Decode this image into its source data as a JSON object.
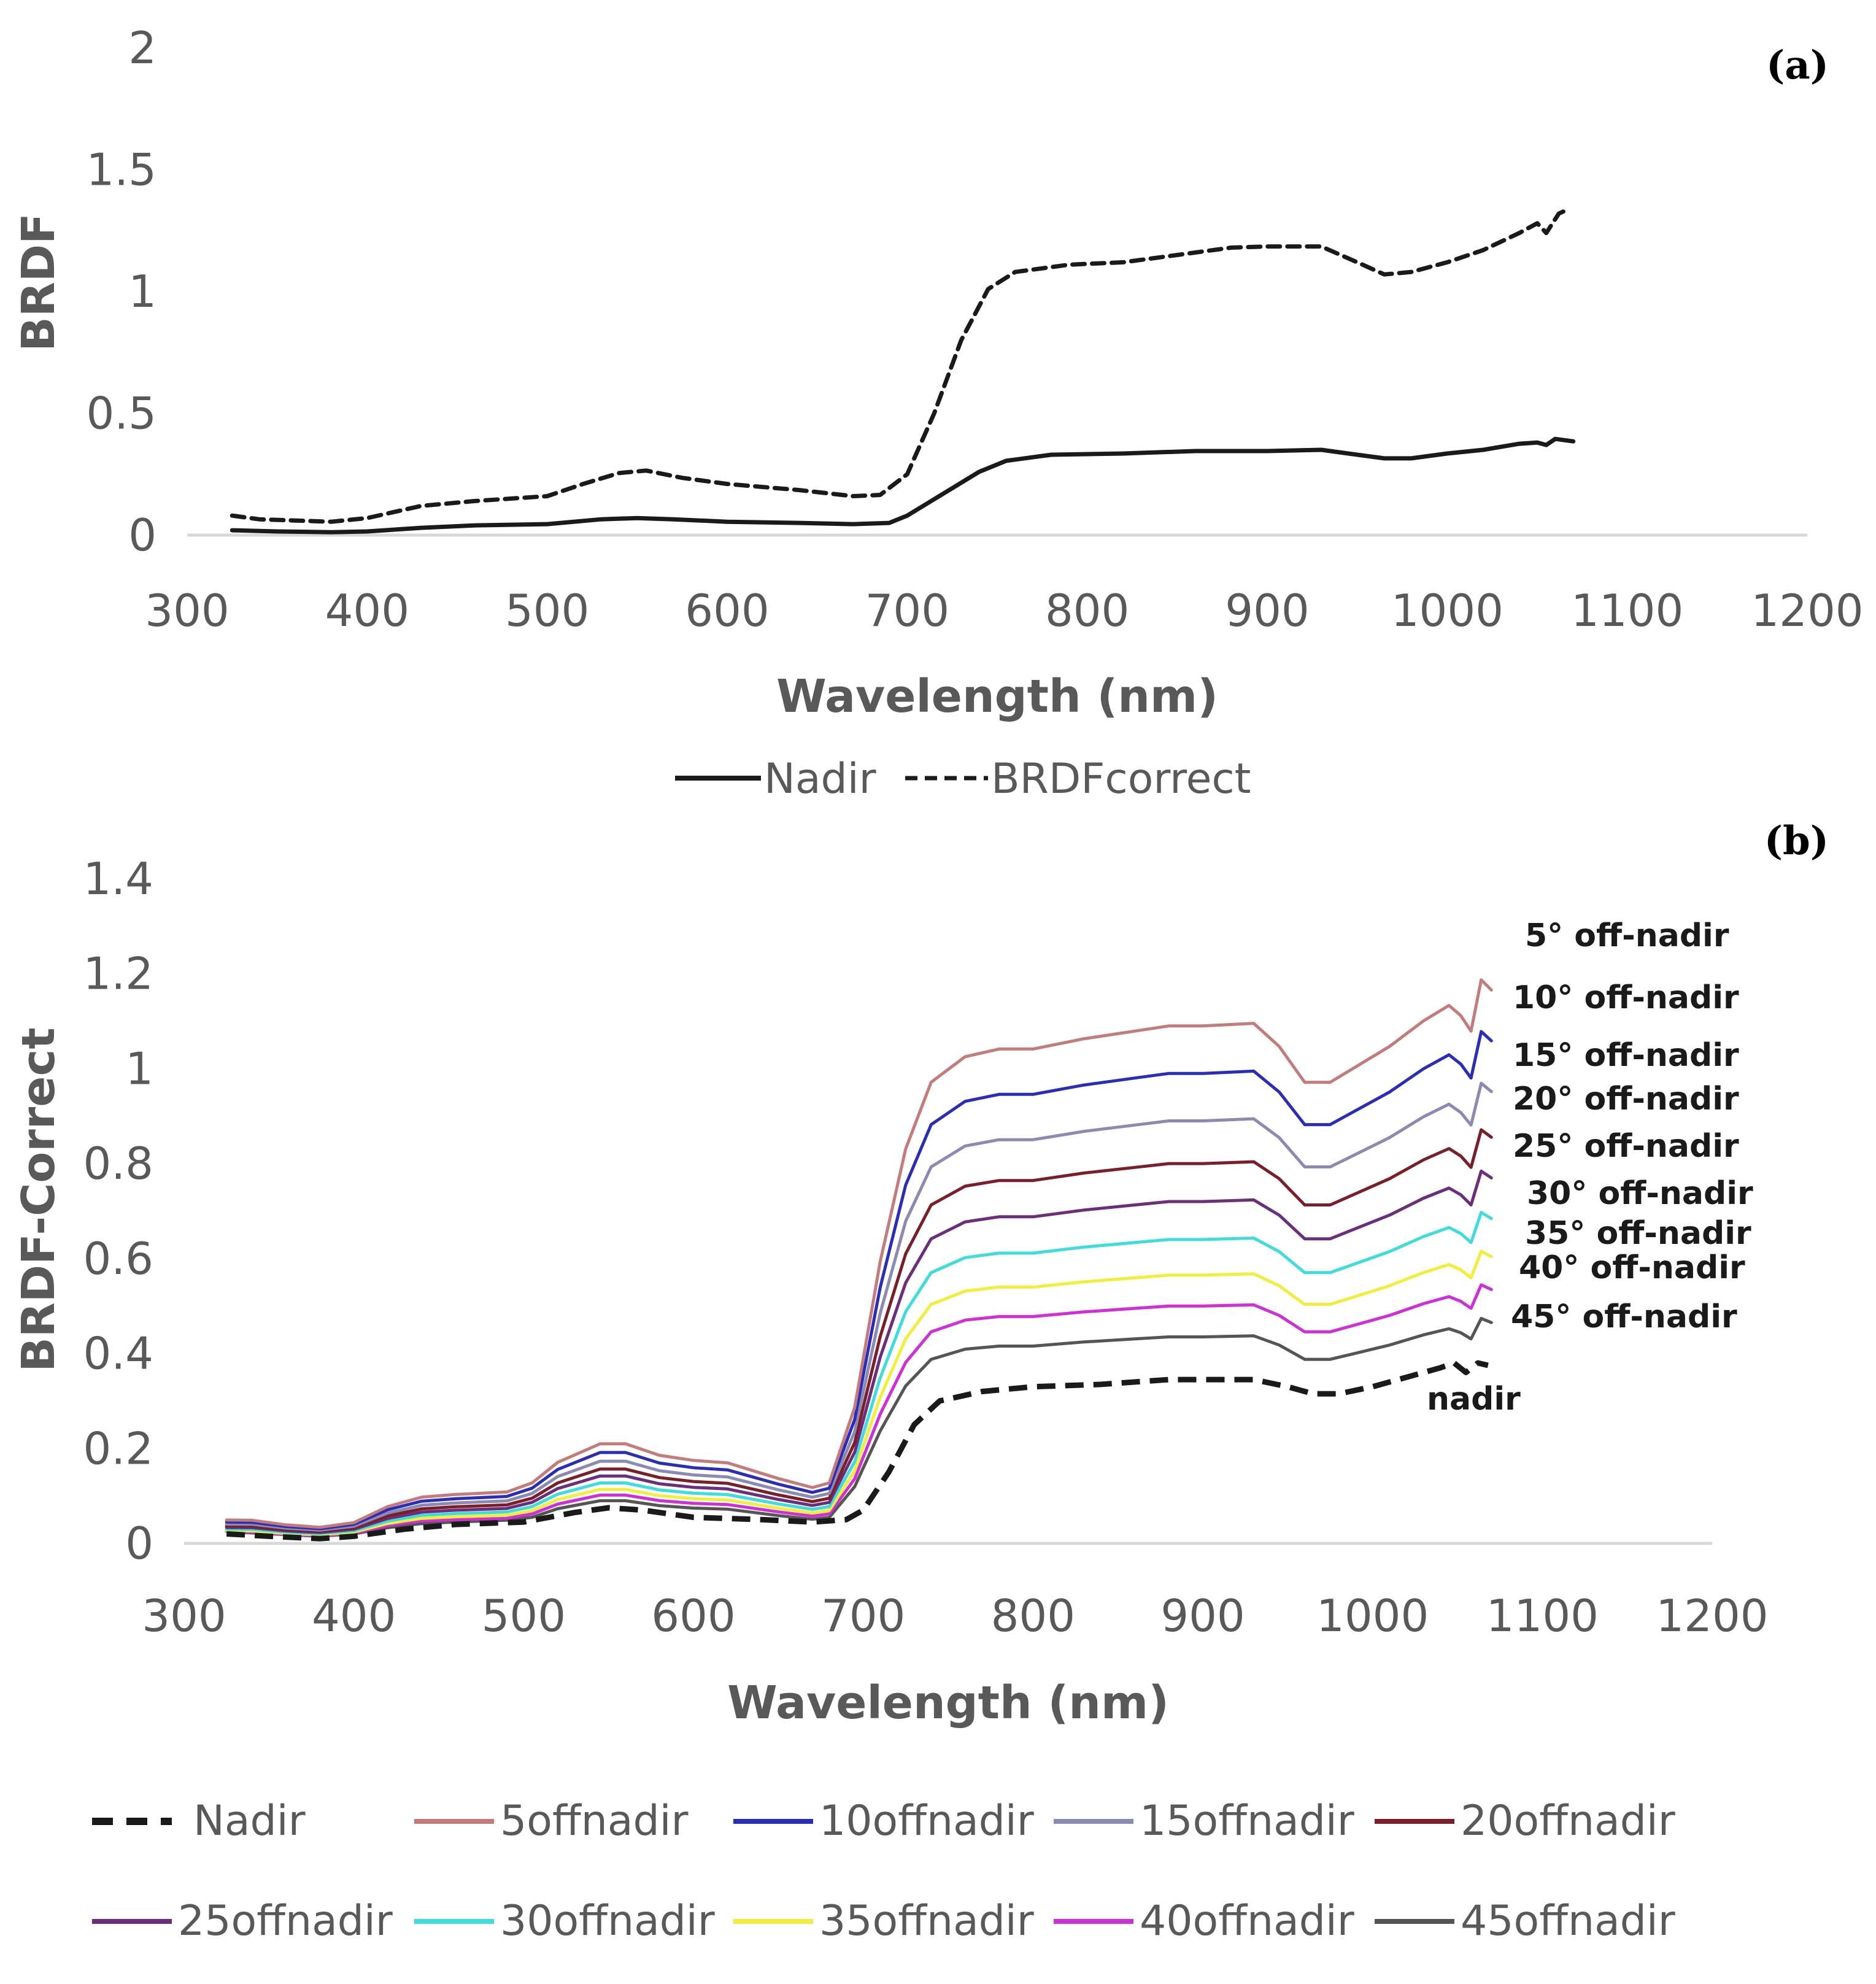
{
  "chart_data": [
    {
      "panel": "(a)",
      "type": "line",
      "xlabel": "Wavelength (nm)",
      "ylabel": "BRDF",
      "xlim": [
        300,
        1200
      ],
      "ylim": [
        0,
        2
      ],
      "xticks": [
        "300",
        "400",
        "500",
        "600",
        "700",
        "800",
        "900",
        "1000",
        "1100",
        "1200"
      ],
      "yticks": [
        "0",
        "0.5",
        "1",
        "1.5",
        "2"
      ],
      "grid": false,
      "legend_position": "bottom",
      "series": [
        {
          "name": "Nadir",
          "color": "#1a1a1a",
          "style": "solid",
          "points": [
            [
              325,
              0.02
            ],
            [
              350,
              0.015
            ],
            [
              380,
              0.012
            ],
            [
              400,
              0.015
            ],
            [
              430,
              0.03
            ],
            [
              460,
              0.04
            ],
            [
              500,
              0.045
            ],
            [
              530,
              0.065
            ],
            [
              550,
              0.07
            ],
            [
              570,
              0.065
            ],
            [
              600,
              0.055
            ],
            [
              640,
              0.05
            ],
            [
              670,
              0.045
            ],
            [
              690,
              0.05
            ],
            [
              700,
              0.08
            ],
            [
              720,
              0.17
            ],
            [
              740,
              0.26
            ],
            [
              755,
              0.305
            ],
            [
              780,
              0.33
            ],
            [
              820,
              0.335
            ],
            [
              860,
              0.345
            ],
            [
              900,
              0.345
            ],
            [
              930,
              0.35
            ],
            [
              950,
              0.33
            ],
            [
              965,
              0.315
            ],
            [
              980,
              0.315
            ],
            [
              1000,
              0.335
            ],
            [
              1020,
              0.35
            ],
            [
              1040,
              0.375
            ],
            [
              1050,
              0.38
            ],
            [
              1055,
              0.37
            ],
            [
              1060,
              0.395
            ],
            [
              1070,
              0.385
            ]
          ]
        },
        {
          "name": "BRDFcorrect",
          "color": "#1a1a1a",
          "style": "dashed",
          "points": [
            [
              325,
              0.08
            ],
            [
              340,
              0.065
            ],
            [
              380,
              0.055
            ],
            [
              400,
              0.07
            ],
            [
              430,
              0.12
            ],
            [
              460,
              0.14
            ],
            [
              500,
              0.16
            ],
            [
              520,
              0.21
            ],
            [
              540,
              0.255
            ],
            [
              555,
              0.265
            ],
            [
              575,
              0.235
            ],
            [
              600,
              0.21
            ],
            [
              640,
              0.185
            ],
            [
              670,
              0.16
            ],
            [
              685,
              0.165
            ],
            [
              700,
              0.25
            ],
            [
              715,
              0.5
            ],
            [
              730,
              0.8
            ],
            [
              745,
              1.01
            ],
            [
              760,
              1.08
            ],
            [
              790,
              1.11
            ],
            [
              820,
              1.12
            ],
            [
              850,
              1.15
            ],
            [
              880,
              1.18
            ],
            [
              900,
              1.185
            ],
            [
              930,
              1.185
            ],
            [
              950,
              1.12
            ],
            [
              965,
              1.07
            ],
            [
              980,
              1.08
            ],
            [
              1000,
              1.12
            ],
            [
              1020,
              1.17
            ],
            [
              1040,
              1.24
            ],
            [
              1050,
              1.28
            ],
            [
              1055,
              1.24
            ],
            [
              1062,
              1.32
            ],
            [
              1068,
              1.34
            ]
          ]
        }
      ]
    },
    {
      "panel": "(b)",
      "type": "line",
      "xlabel": "Wavelength (nm)",
      "ylabel": "BRDF-Correct",
      "xlim": [
        300,
        1200
      ],
      "ylim": [
        0,
        1.4
      ],
      "xticks": [
        "300",
        "400",
        "500",
        "600",
        "700",
        "800",
        "900",
        "1000",
        "1100",
        "1200"
      ],
      "yticks": [
        "0",
        "0.2",
        "0.4",
        "0.6",
        "0.8",
        "1",
        "1.2",
        "1.4"
      ],
      "grid": false,
      "legend_position": "bottom",
      "nadir_curve": {
        "name": "Nadir",
        "color": "#1a1a1a",
        "style": "dashed",
        "points": [
          [
            325,
            0.02
          ],
          [
            350,
            0.015
          ],
          [
            380,
            0.01
          ],
          [
            400,
            0.015
          ],
          [
            430,
            0.03
          ],
          [
            460,
            0.04
          ],
          [
            500,
            0.045
          ],
          [
            530,
            0.065
          ],
          [
            550,
            0.075
          ],
          [
            570,
            0.07
          ],
          [
            600,
            0.055
          ],
          [
            640,
            0.05
          ],
          [
            670,
            0.045
          ],
          [
            690,
            0.05
          ],
          [
            700,
            0.07
          ],
          [
            715,
            0.15
          ],
          [
            730,
            0.25
          ],
          [
            745,
            0.3
          ],
          [
            770,
            0.32
          ],
          [
            800,
            0.33
          ],
          [
            840,
            0.335
          ],
          [
            880,
            0.345
          ],
          [
            900,
            0.345
          ],
          [
            930,
            0.345
          ],
          [
            950,
            0.33
          ],
          [
            965,
            0.315
          ],
          [
            980,
            0.315
          ],
          [
            1000,
            0.33
          ],
          [
            1020,
            0.35
          ],
          [
            1040,
            0.37
          ],
          [
            1048,
            0.38
          ],
          [
            1055,
            0.36
          ],
          [
            1062,
            0.38
          ],
          [
            1068,
            0.375
          ]
        ]
      },
      "offnadir_base_shape": [
        [
          325,
          0.05
        ],
        [
          340,
          0.05
        ],
        [
          360,
          0.04
        ],
        [
          380,
          0.035
        ],
        [
          400,
          0.045
        ],
        [
          420,
          0.08
        ],
        [
          440,
          0.1
        ],
        [
          460,
          0.105
        ],
        [
          490,
          0.11
        ],
        [
          505,
          0.13
        ],
        [
          520,
          0.175
        ],
        [
          545,
          0.215
        ],
        [
          560,
          0.215
        ],
        [
          580,
          0.19
        ],
        [
          600,
          0.18
        ],
        [
          620,
          0.175
        ],
        [
          650,
          0.14
        ],
        [
          670,
          0.12
        ],
        [
          680,
          0.13
        ],
        [
          695,
          0.3
        ],
        [
          710,
          0.55
        ],
        [
          725,
          0.77
        ],
        [
          740,
          0.9
        ],
        [
          760,
          0.95
        ],
        [
          780,
          0.965
        ],
        [
          800,
          0.965
        ],
        [
          830,
          0.985
        ],
        [
          860,
          1.0
        ],
        [
          880,
          1.01
        ],
        [
          900,
          1.01
        ],
        [
          930,
          1.015
        ],
        [
          945,
          0.97
        ],
        [
          960,
          0.9
        ],
        [
          975,
          0.9
        ],
        [
          990,
          0.93
        ],
        [
          1010,
          0.97
        ],
        [
          1030,
          1.02
        ],
        [
          1045,
          1.05
        ],
        [
          1052,
          1.03
        ],
        [
          1058,
          1.0
        ],
        [
          1064,
          1.1
        ],
        [
          1070,
          1.08
        ]
      ],
      "series": [
        {
          "name": "5offnadir",
          "label": "5° off-nadir",
          "color": "#c47b7b",
          "nir_plateau": 1.09
        },
        {
          "name": "10offnadir",
          "label": "10° off-nadir",
          "color": "#2b2db8",
          "nir_plateau": 0.99
        },
        {
          "name": "15offnadir",
          "label": "15° off-nadir",
          "color": "#8a8ab2",
          "nir_plateau": 0.89
        },
        {
          "name": "20offnadir",
          "label": "20° off-nadir",
          "color": "#7a1f2a",
          "nir_plateau": 0.8
        },
        {
          "name": "25offnadir",
          "label": "25° off-nadir",
          "color": "#6b2d7c",
          "nir_plateau": 0.72
        },
        {
          "name": "30offnadir",
          "label": "30° off-nadir",
          "color": "#3fdcdc",
          "nir_plateau": 0.64
        },
        {
          "name": "35offnadir",
          "label": "35° off-nadir",
          "color": "#f2ef3c",
          "nir_plateau": 0.565
        },
        {
          "name": "40offnadir",
          "label": "40° off-nadir",
          "color": "#d02fd8",
          "nir_plateau": 0.5
        },
        {
          "name": "45offnadir",
          "label": "45° off-nadir",
          "color": "#555555",
          "nir_plateau": 0.435
        }
      ],
      "nadir_label": "nadir"
    }
  ],
  "legend_a": [
    "Nadir",
    "BRDFcorrect"
  ],
  "legend_b": [
    "Nadir",
    "5offnadir",
    "10offnadir",
    "15offnadir",
    "20offnadir",
    "25offnadir",
    "30offnadir",
    "35offnadir",
    "40offnadir",
    "45offnadir"
  ]
}
